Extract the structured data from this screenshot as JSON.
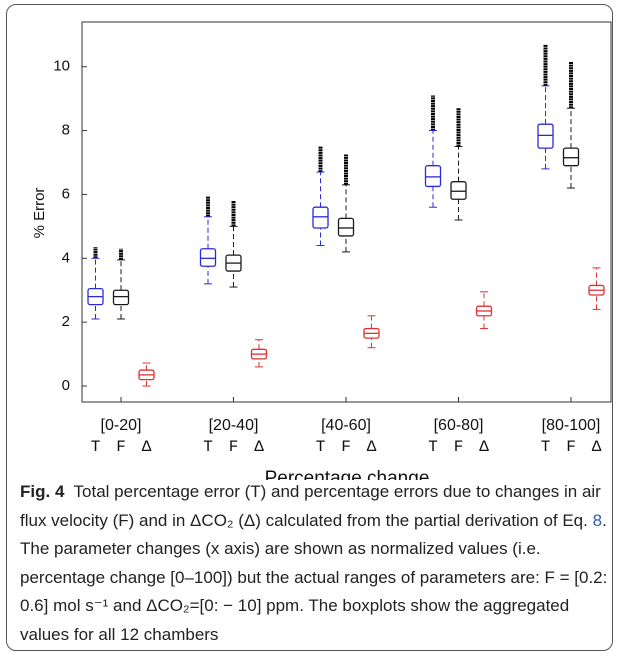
{
  "chart_data": {
    "type": "box",
    "y_label": "% Error",
    "x_label": "Percentage change",
    "categories": [
      "[0-20]",
      "[20-40]",
      "[40-60]",
      "[60-80]",
      "[80-100]"
    ],
    "ylim": [
      -0.5,
      11.4
    ],
    "yticks": [
      0,
      2,
      4,
      6,
      8,
      10
    ],
    "series": [
      {
        "name": "T",
        "color": "#2b2bd6",
        "boxes": [
          {
            "low": 2.1,
            "q1": 2.55,
            "median": 2.8,
            "q3": 3.05,
            "high": 4.0,
            "outlier_max": 4.35
          },
          {
            "low": 3.2,
            "q1": 3.75,
            "median": 4.0,
            "q3": 4.3,
            "high": 5.3,
            "outlier_max": 5.95
          },
          {
            "low": 4.4,
            "q1": 4.95,
            "median": 5.3,
            "q3": 5.6,
            "high": 6.7,
            "outlier_max": 7.5
          },
          {
            "low": 5.6,
            "q1": 6.25,
            "median": 6.55,
            "q3": 6.9,
            "high": 8.0,
            "outlier_max": 9.1
          },
          {
            "low": 6.8,
            "q1": 7.45,
            "median": 7.85,
            "q3": 8.2,
            "high": 9.4,
            "outlier_max": 10.7
          }
        ]
      },
      {
        "name": "F",
        "color": "#1a1a1a",
        "boxes": [
          {
            "low": 2.1,
            "q1": 2.55,
            "median": 2.8,
            "q3": 3.0,
            "high": 3.95,
            "outlier_max": 4.3
          },
          {
            "low": 3.1,
            "q1": 3.6,
            "median": 3.85,
            "q3": 4.1,
            "high": 5.0,
            "outlier_max": 5.8
          },
          {
            "low": 4.2,
            "q1": 4.7,
            "median": 4.95,
            "q3": 5.25,
            "high": 6.3,
            "outlier_max": 7.25
          },
          {
            "low": 5.2,
            "q1": 5.85,
            "median": 6.1,
            "q3": 6.4,
            "high": 7.5,
            "outlier_max": 8.7
          },
          {
            "low": 6.2,
            "q1": 6.9,
            "median": 7.15,
            "q3": 7.45,
            "high": 8.7,
            "outlier_max": 10.15
          }
        ]
      },
      {
        "name": "Δ",
        "color": "#e03030",
        "boxes": [
          {
            "low": 0.0,
            "q1": 0.2,
            "median": 0.35,
            "q3": 0.5,
            "high": 0.72,
            "outlier_max": null
          },
          {
            "low": 0.6,
            "q1": 0.85,
            "median": 1.0,
            "q3": 1.15,
            "high": 1.45,
            "outlier_max": null
          },
          {
            "low": 1.2,
            "q1": 1.5,
            "median": 1.65,
            "q3": 1.8,
            "high": 2.2,
            "outlier_max": null
          },
          {
            "low": 1.8,
            "q1": 2.2,
            "median": 2.35,
            "q3": 2.5,
            "high": 2.95,
            "outlier_max": null
          },
          {
            "low": 2.4,
            "q1": 2.85,
            "median": 3.0,
            "q3": 3.15,
            "high": 3.7,
            "outlier_max": null
          }
        ]
      }
    ]
  },
  "caption": {
    "label": "Fig. 4",
    "text_before_ref": "Total percentage error (T) and percentage errors due to changes in air flux velocity (F) and in ΔCO₂ (Δ) calculated from the partial derivation of Eq. ",
    "ref": "8",
    "text_after_ref": ". The parameter changes (x axis) are shown as normalized values (i.e. percentage change [0–100]) but the actual ranges of parameters are: F = [0.2: 0.6] mol s⁻¹ and ΔCO₂=[0: − 10] ppm. The boxplots show the aggregated values for all 12 chambers"
  }
}
